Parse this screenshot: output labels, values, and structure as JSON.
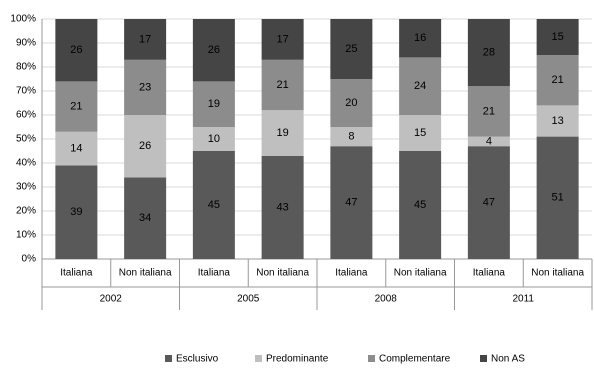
{
  "chart_data": {
    "type": "stacked-bar",
    "categories": [
      "Italiana",
      "Non italiana",
      "Italiana",
      "Non italiana",
      "Italiana",
      "Non italiana",
      "Italiana",
      "Non italiana"
    ],
    "groups": [
      "2002",
      "2005",
      "2008",
      "2011"
    ],
    "series": [
      {
        "name": "Esclusivo",
        "color": "#595959",
        "values": [
          39,
          34,
          45,
          43,
          47,
          45,
          47,
          51
        ]
      },
      {
        "name": "Predominante",
        "color": "#bfbfbf",
        "values": [
          14,
          26,
          10,
          19,
          8,
          15,
          4,
          13
        ]
      },
      {
        "name": "Complementare",
        "color": "#8c8c8c",
        "values": [
          21,
          23,
          19,
          21,
          20,
          24,
          21,
          21
        ]
      },
      {
        "name": "Non AS",
        "color": "#454545",
        "values": [
          26,
          17,
          26,
          17,
          25,
          16,
          28,
          15
        ]
      }
    ],
    "ylim": [
      0,
      100
    ],
    "yticks": [
      {
        "value": 0,
        "label": "0%"
      },
      {
        "value": 10,
        "label": "10%"
      },
      {
        "value": 20,
        "label": "20%"
      },
      {
        "value": 30,
        "label": "30%"
      },
      {
        "value": 40,
        "label": "40%"
      },
      {
        "value": 50,
        "label": "50%"
      },
      {
        "value": 60,
        "label": "60%"
      },
      {
        "value": 70,
        "label": "70%"
      },
      {
        "value": 80,
        "label": "80%"
      },
      {
        "value": 90,
        "label": "90%"
      },
      {
        "value": 100,
        "label": "100%"
      }
    ],
    "grid": true,
    "legend": "bottom"
  }
}
